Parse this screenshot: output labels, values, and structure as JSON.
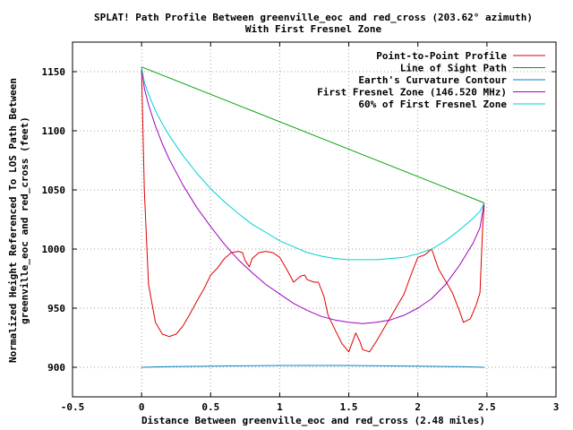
{
  "chart_data": {
    "type": "line",
    "title": "SPLAT! Path Profile Between greenville_eoc and red_cross (203.62° azimuth)",
    "subtitle": "With First Fresnel Zone",
    "xlabel": "Distance Between greenville_eoc and red_cross (2.48 miles)",
    "ylabel_line1": "Normalized Height Referenced To LOS Path Between",
    "ylabel_line2": "greenville_eoc and red_cross (feet)",
    "xlim": [
      -0.5,
      3
    ],
    "ylim": [
      875,
      1175
    ],
    "xticks": [
      "-0.5",
      "0",
      "0.5",
      "1",
      "1.5",
      "2",
      "2.5",
      "3"
    ],
    "yticks": [
      "900",
      "950",
      "1000",
      "1050",
      "1100",
      "1150"
    ],
    "grid": true,
    "legend_position": "top-right",
    "series": [
      {
        "name": "Point-to-Point Profile",
        "color": "#e00000",
        "points": [
          [
            0,
            1152
          ],
          [
            0.02,
            1050
          ],
          [
            0.05,
            970
          ],
          [
            0.1,
            938
          ],
          [
            0.15,
            928
          ],
          [
            0.2,
            926
          ],
          [
            0.25,
            928
          ],
          [
            0.3,
            935
          ],
          [
            0.35,
            945
          ],
          [
            0.4,
            956
          ],
          [
            0.45,
            966
          ],
          [
            0.5,
            978
          ],
          [
            0.55,
            984
          ],
          [
            0.6,
            992
          ],
          [
            0.65,
            997
          ],
          [
            0.7,
            998
          ],
          [
            0.73,
            997
          ],
          [
            0.75,
            990
          ],
          [
            0.78,
            985
          ],
          [
            0.8,
            992
          ],
          [
            0.85,
            997
          ],
          [
            0.9,
            998
          ],
          [
            0.95,
            997
          ],
          [
            1.0,
            993
          ],
          [
            1.05,
            983
          ],
          [
            1.1,
            972
          ],
          [
            1.15,
            977
          ],
          [
            1.18,
            978
          ],
          [
            1.2,
            974
          ],
          [
            1.25,
            972
          ],
          [
            1.28,
            972
          ],
          [
            1.32,
            960
          ],
          [
            1.35,
            944
          ],
          [
            1.4,
            932
          ],
          [
            1.45,
            920
          ],
          [
            1.5,
            913
          ],
          [
            1.55,
            929
          ],
          [
            1.58,
            922
          ],
          [
            1.6,
            915
          ],
          [
            1.65,
            913
          ],
          [
            1.7,
            922
          ],
          [
            1.75,
            932
          ],
          [
            1.8,
            942
          ],
          [
            1.85,
            952
          ],
          [
            1.9,
            962
          ],
          [
            1.95,
            978
          ],
          [
            2.0,
            993
          ],
          [
            2.05,
            995
          ],
          [
            2.1,
            1000
          ],
          [
            2.15,
            983
          ],
          [
            2.2,
            973
          ],
          [
            2.25,
            963
          ],
          [
            2.3,
            948
          ],
          [
            2.33,
            938
          ],
          [
            2.38,
            941
          ],
          [
            2.42,
            952
          ],
          [
            2.45,
            963
          ],
          [
            2.47,
            1020
          ],
          [
            2.48,
            1037
          ]
        ]
      },
      {
        "name": "Line of Sight Path",
        "color": "#00a000",
        "points": [
          [
            0,
            1154
          ],
          [
            2.48,
            1039
          ]
        ]
      },
      {
        "name": "Earth's Curvature Contour",
        "color": "#0080c0",
        "points": [
          [
            0,
            900
          ],
          [
            0.2,
            900.5
          ],
          [
            0.5,
            901
          ],
          [
            1.0,
            901.5
          ],
          [
            1.5,
            901.5
          ],
          [
            2.0,
            901
          ],
          [
            2.3,
            900.5
          ],
          [
            2.48,
            900
          ]
        ]
      },
      {
        "name": "First Fresnel Zone (146.520 MHz)",
        "color": "#a000c0",
        "points": [
          [
            0,
            1154
          ],
          [
            0.02,
            1136
          ],
          [
            0.05,
            1122
          ],
          [
            0.1,
            1104
          ],
          [
            0.15,
            1089
          ],
          [
            0.2,
            1076
          ],
          [
            0.3,
            1054
          ],
          [
            0.4,
            1035
          ],
          [
            0.5,
            1019
          ],
          [
            0.6,
            1004
          ],
          [
            0.7,
            991
          ],
          [
            0.8,
            980
          ],
          [
            0.9,
            970
          ],
          [
            1.0,
            962
          ],
          [
            1.1,
            954
          ],
          [
            1.2,
            948
          ],
          [
            1.3,
            943
          ],
          [
            1.4,
            940
          ],
          [
            1.5,
            938
          ],
          [
            1.6,
            937
          ],
          [
            1.7,
            938
          ],
          [
            1.8,
            940
          ],
          [
            1.9,
            944
          ],
          [
            2.0,
            950
          ],
          [
            2.1,
            958
          ],
          [
            2.2,
            970
          ],
          [
            2.3,
            986
          ],
          [
            2.4,
            1005
          ],
          [
            2.45,
            1018
          ],
          [
            2.48,
            1039
          ]
        ]
      },
      {
        "name": "60% of First Fresnel Zone",
        "color": "#00d0d0",
        "points": [
          [
            0,
            1154
          ],
          [
            0.02,
            1141
          ],
          [
            0.05,
            1131
          ],
          [
            0.1,
            1117
          ],
          [
            0.15,
            1106
          ],
          [
            0.2,
            1096
          ],
          [
            0.3,
            1079
          ],
          [
            0.4,
            1064
          ],
          [
            0.5,
            1051
          ],
          [
            0.6,
            1040
          ],
          [
            0.7,
            1030
          ],
          [
            0.8,
            1021
          ],
          [
            0.9,
            1014
          ],
          [
            1.0,
            1007
          ],
          [
            1.1,
            1002
          ],
          [
            1.2,
            997
          ],
          [
            1.3,
            994
          ],
          [
            1.4,
            992
          ],
          [
            1.5,
            991
          ],
          [
            1.6,
            991
          ],
          [
            1.7,
            991
          ],
          [
            1.8,
            992
          ],
          [
            1.9,
            993
          ],
          [
            2.0,
            996
          ],
          [
            2.1,
            1000
          ],
          [
            2.2,
            1007
          ],
          [
            2.3,
            1016
          ],
          [
            2.4,
            1026
          ],
          [
            2.45,
            1032
          ],
          [
            2.48,
            1039
          ]
        ]
      }
    ]
  }
}
